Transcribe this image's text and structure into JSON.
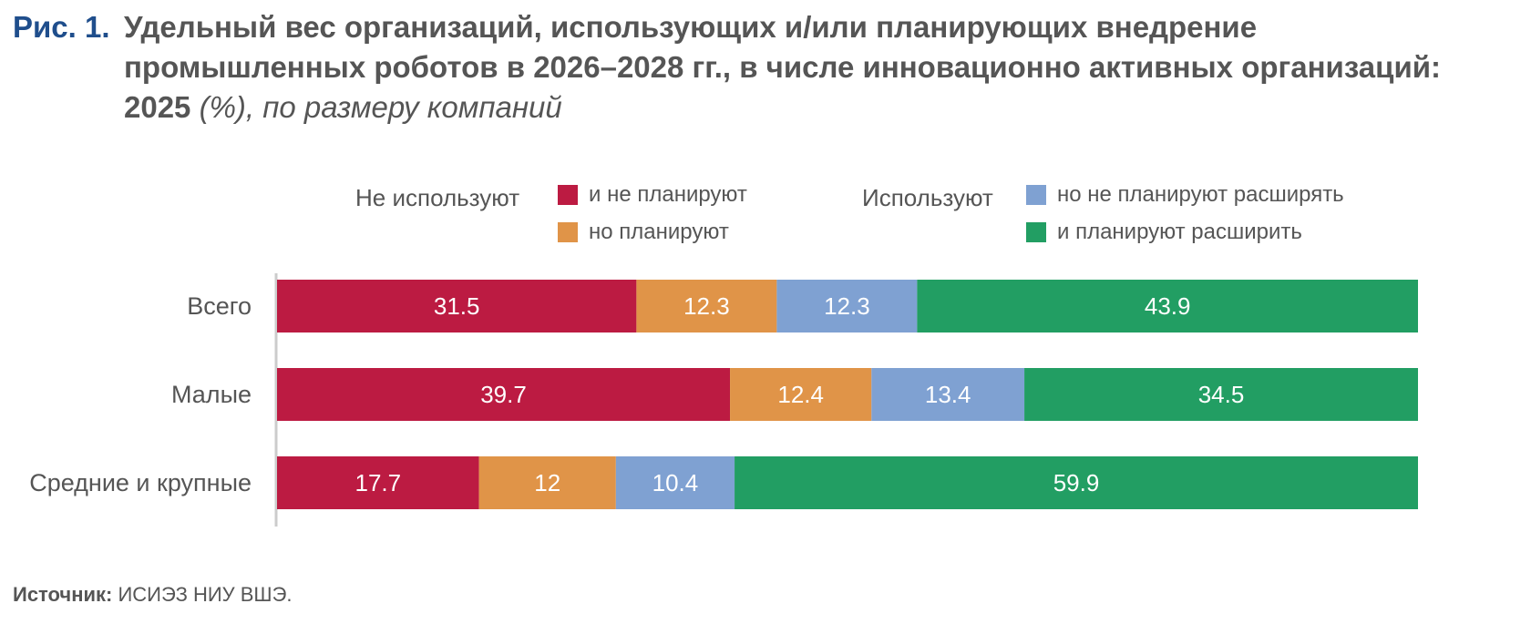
{
  "figure": {
    "label": "Рис. 1.",
    "title_bold": "Удельный вес организаций, использующих и/или планирующих внедрение промышленных роботов в 2026–2028 гг., в числе инновационно активных организаций: 2025",
    "title_italic": "(%), по размеру компаний"
  },
  "legend": {
    "group_not_using": "Не используют",
    "group_using": "Используют",
    "items": [
      "и не планируют",
      "но планируют",
      "но не планируют расширять",
      "и планируют расширить"
    ]
  },
  "colors": {
    "and_not_planning": "#bc1b42",
    "but_planning": "#e09448",
    "not_planning_expand": "#7fa1d2",
    "planning_expand": "#229e63"
  },
  "chart_data": {
    "type": "bar",
    "orientation": "horizontal",
    "stacked": true,
    "categories": [
      "Всего",
      "Малые",
      "Средние и крупные"
    ],
    "series": [
      {
        "name": "и не планируют",
        "values": [
          31.5,
          39.7,
          17.7
        ]
      },
      {
        "name": "но планируют",
        "values": [
          12.3,
          12.4,
          12
        ]
      },
      {
        "name": "но не планируют расширять",
        "values": [
          12.3,
          13.4,
          10.4
        ]
      },
      {
        "name": "и планируют расширить",
        "values": [
          43.9,
          34.5,
          59.9
        ]
      }
    ],
    "data_labels": [
      [
        "31.5",
        "39.7",
        "17.7"
      ],
      [
        "12.3",
        "12.4",
        "12"
      ],
      [
        "12.3",
        "13.4",
        "10.4"
      ],
      [
        "43.9",
        "34.5",
        "59.9"
      ]
    ],
    "legend_placement": "top",
    "grid": false
  },
  "source": {
    "label": "Источник:",
    "text": "ИСИЭЗ НИУ ВШЭ."
  }
}
